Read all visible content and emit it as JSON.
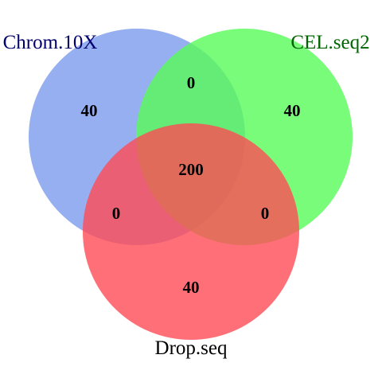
{
  "diagram": {
    "type": "venn-3",
    "sets": [
      {
        "id": "chrom10x",
        "label": "Chrom.10X",
        "fill_color": "#7a9bec",
        "label_color": "#00006e"
      },
      {
        "id": "celseq2",
        "label": "CEL.seq2",
        "fill_color": "#58fb58",
        "label_color": "#006400"
      },
      {
        "id": "dropseq",
        "label": "Drop.seq",
        "fill_color": "#ff4b55",
        "label_color": "#000000"
      }
    ],
    "regions": {
      "chrom10x_only": "40",
      "celseq2_only": "40",
      "dropseq_only": "40",
      "chrom10x_celseq2": "0",
      "chrom10x_dropseq": "0",
      "celseq2_dropseq": "0",
      "all_three": "200"
    }
  }
}
